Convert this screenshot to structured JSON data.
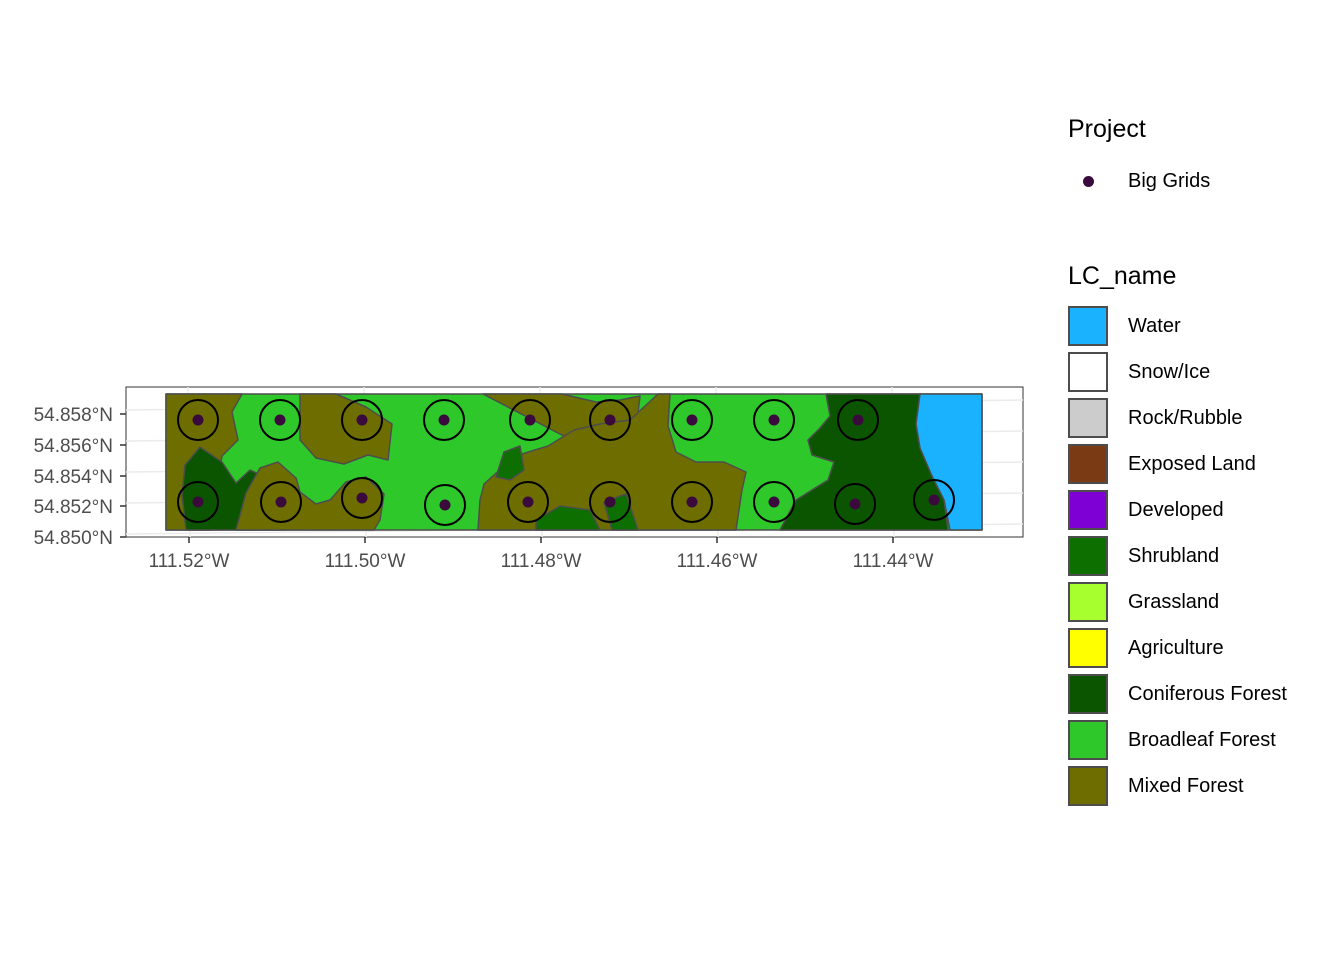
{
  "colors": {
    "water": "#1ab1ff",
    "coniferous": "#0b5500",
    "broadleaf": "#2ec82a",
    "mixed": "#6e6e00",
    "shrubland": "#0d6f00",
    "point": "#3a0a3d",
    "border": "#4d4d4d"
  },
  "axes": {
    "x_ticks": [
      "111.52°W",
      "111.50°W",
      "111.48°W",
      "111.46°W",
      "111.44°W"
    ],
    "y_ticks": [
      "54.850°N",
      "54.852°N",
      "54.854°N",
      "54.856°N",
      "54.858°N"
    ]
  },
  "legend_project": {
    "title": "Project",
    "items": [
      {
        "label": "Big Grids",
        "color": "#3a0a3d"
      }
    ]
  },
  "legend_lc": {
    "title": "LC_name",
    "items": [
      {
        "label": "Water",
        "color": "#1ab1ff"
      },
      {
        "label": "Snow/Ice",
        "color": "#ffffff"
      },
      {
        "label": "Rock/Rubble",
        "color": "#cccccc"
      },
      {
        "label": "Exposed Land",
        "color": "#7a3a14"
      },
      {
        "label": "Developed",
        "color": "#7f00d5"
      },
      {
        "label": "Shrubland",
        "color": "#0d6f00"
      },
      {
        "label": "Grassland",
        "color": "#a8ff2e"
      },
      {
        "label": "Agriculture",
        "color": "#ffff00"
      },
      {
        "label": "Coniferous Forest",
        "color": "#0b5500"
      },
      {
        "label": "Broadleaf Forest",
        "color": "#2ec82a"
      },
      {
        "label": "Mixed Forest",
        "color": "#6e6e00"
      }
    ]
  }
}
